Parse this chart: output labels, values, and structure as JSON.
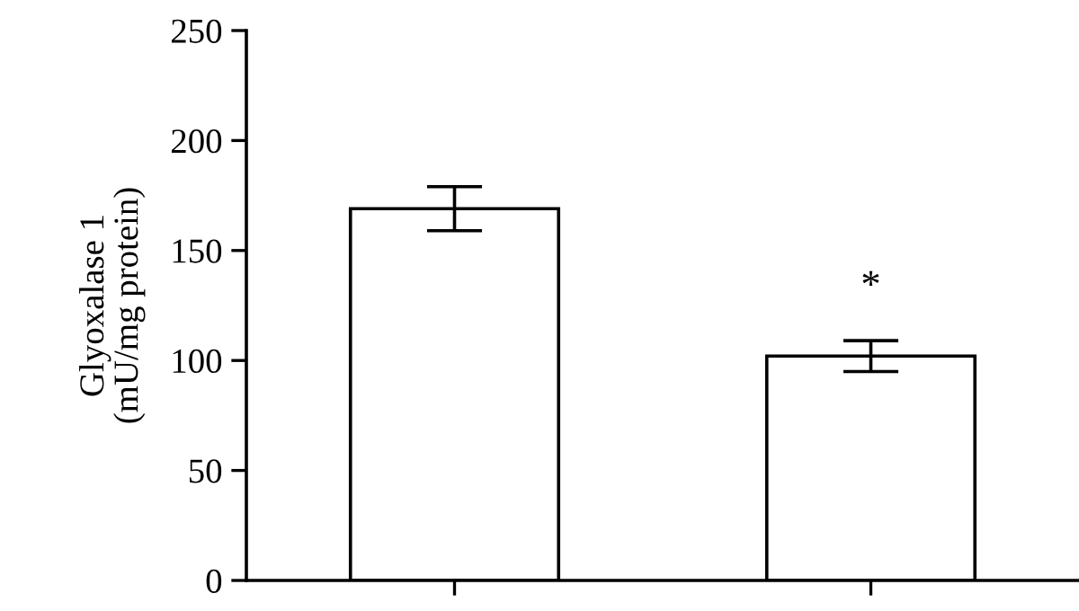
{
  "chart_data": {
    "type": "bar",
    "ylabel": "Glyoxalase 1\n(mU/mg protein)",
    "categories": [
      null,
      null
    ],
    "values": [
      169,
      102
    ],
    "errors": [
      10,
      7
    ],
    "color": "#ffffff",
    "ylim": [
      0,
      250
    ],
    "yticks": [
      0,
      50,
      100,
      150,
      200,
      250
    ],
    "tick_labels": "y",
    "grid": false,
    "annotations": [
      "*"
    ]
  }
}
